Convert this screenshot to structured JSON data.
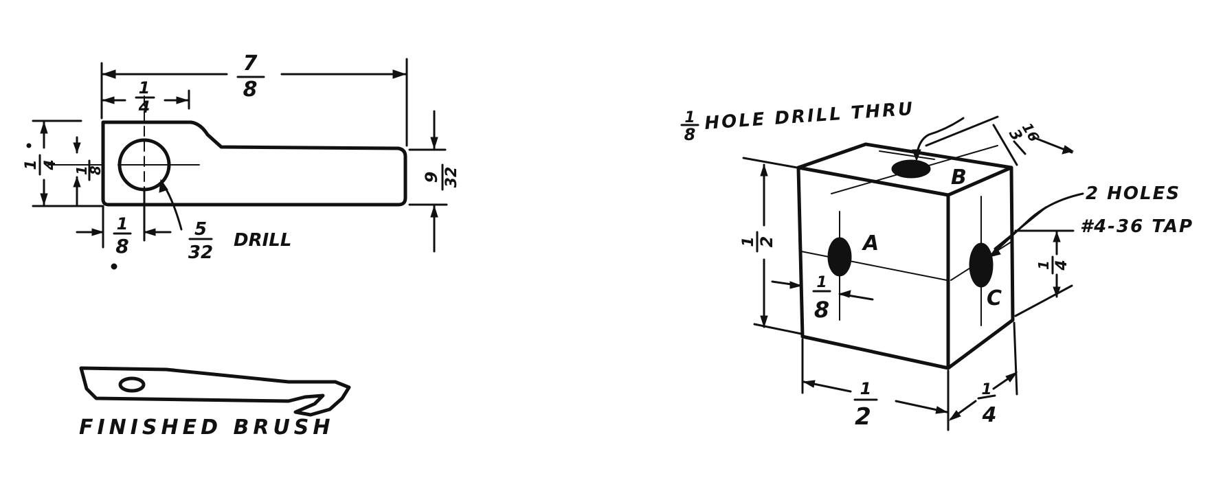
{
  "left_drawing": {
    "overall_length": {
      "num": "7",
      "den": "8"
    },
    "hole_offset": {
      "num": "1",
      "den": "4"
    },
    "height_left": {
      "num": "1",
      "den": "4"
    },
    "inner_left": {
      "num": "1",
      "den": "8"
    },
    "height_right": {
      "num": "9",
      "den": "32"
    },
    "edge_offset": {
      "num": "1",
      "den": "8"
    },
    "drill": {
      "num": "5",
      "den": "32",
      "label": "DRILL"
    }
  },
  "finished_brush": {
    "label": "FINISHED BRUSH"
  },
  "block": {
    "hole_callout": {
      "num": "1",
      "den": "8",
      "label": "HOLE DRILL THRU"
    },
    "depth_top": {
      "num": "3",
      "den": "16"
    },
    "tap_callout": {
      "line1": "2 HOLES",
      "line2": "#4-36 TAP"
    },
    "label_a": "A",
    "label_b": "B",
    "label_c": "C",
    "height": {
      "num": "1",
      "den": "2"
    },
    "hole_a_offset": {
      "num": "1",
      "den": "8"
    },
    "hole_c_offset": {
      "num": "1",
      "den": "4"
    },
    "width": {
      "num": "1",
      "den": "2"
    },
    "depth_bottom": {
      "num": "1",
      "den": "4"
    }
  }
}
